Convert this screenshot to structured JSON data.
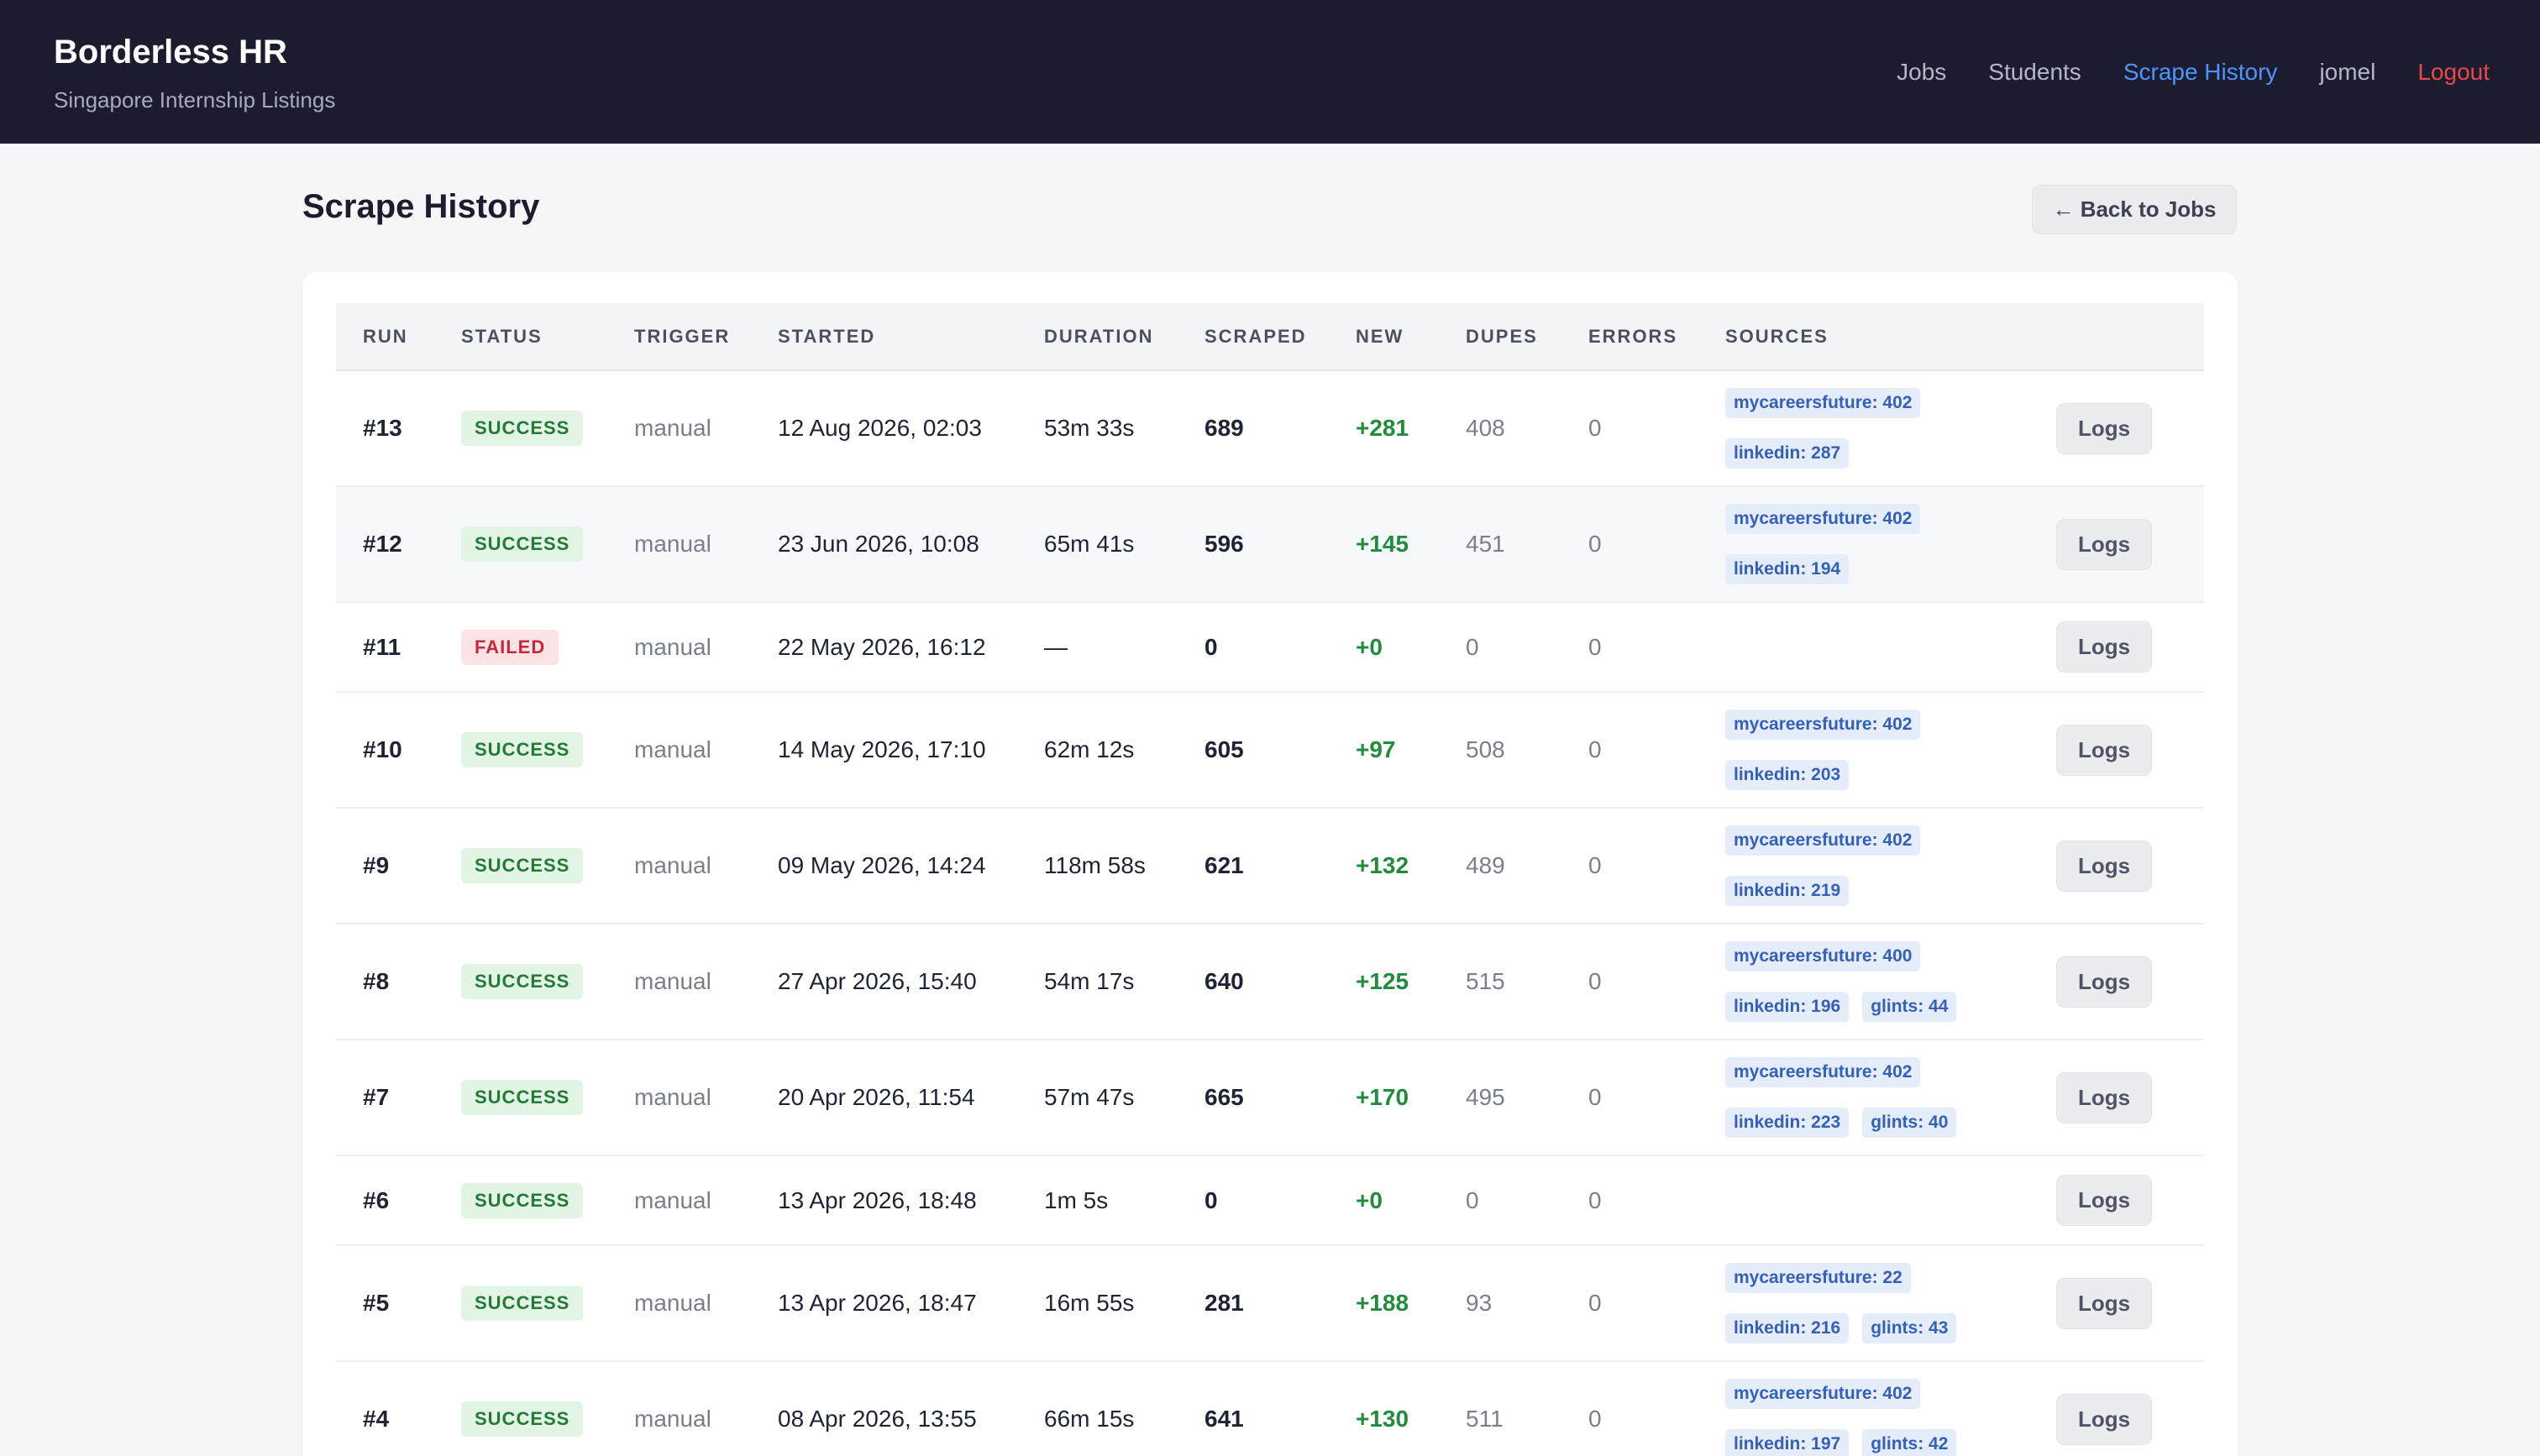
{
  "header": {
    "title": "Borderless HR",
    "subtitle": "Singapore Internship Listings",
    "nav": {
      "jobs": "Jobs",
      "students": "Students",
      "scrape_history": "Scrape History",
      "user": "jomel",
      "logout": "Logout"
    }
  },
  "page": {
    "title": "Scrape History",
    "back_label": "← Back to Jobs"
  },
  "table": {
    "columns": [
      "RUN",
      "STATUS",
      "TRIGGER",
      "STARTED",
      "DURATION",
      "SCRAPED",
      "NEW",
      "DUPES",
      "ERRORS",
      "SOURCES"
    ],
    "logs_label": "Logs",
    "rows": [
      {
        "run": "#13",
        "status": "SUCCESS",
        "trigger": "manual",
        "started": "12 Aug 2026, 02:03",
        "duration": "53m 33s",
        "scraped": "689",
        "new": "+281",
        "dupes": "408",
        "errors": "0",
        "sources": [
          "mycareersfuture: 402",
          "linkedin: 287"
        ]
      },
      {
        "run": "#12",
        "status": "SUCCESS",
        "trigger": "manual",
        "started": "23 Jun 2026, 10:08",
        "duration": "65m 41s",
        "scraped": "596",
        "new": "+145",
        "dupes": "451",
        "errors": "0",
        "sources": [
          "mycareersfuture: 402",
          "linkedin: 194"
        ]
      },
      {
        "run": "#11",
        "status": "FAILED",
        "trigger": "manual",
        "started": "22 May 2026, 16:12",
        "duration": "—",
        "scraped": "0",
        "new": "+0",
        "dupes": "0",
        "errors": "0",
        "sources": []
      },
      {
        "run": "#10",
        "status": "SUCCESS",
        "trigger": "manual",
        "started": "14 May 2026, 17:10",
        "duration": "62m 12s",
        "scraped": "605",
        "new": "+97",
        "dupes": "508",
        "errors": "0",
        "sources": [
          "mycareersfuture: 402",
          "linkedin: 203"
        ]
      },
      {
        "run": "#9",
        "status": "SUCCESS",
        "trigger": "manual",
        "started": "09 May 2026, 14:24",
        "duration": "118m 58s",
        "scraped": "621",
        "new": "+132",
        "dupes": "489",
        "errors": "0",
        "sources": [
          "mycareersfuture: 402",
          "linkedin: 219"
        ]
      },
      {
        "run": "#8",
        "status": "SUCCESS",
        "trigger": "manual",
        "started": "27 Apr 2026, 15:40",
        "duration": "54m 17s",
        "scraped": "640",
        "new": "+125",
        "dupes": "515",
        "errors": "0",
        "sources": [
          "mycareersfuture: 400",
          "linkedin: 196",
          "glints: 44"
        ]
      },
      {
        "run": "#7",
        "status": "SUCCESS",
        "trigger": "manual",
        "started": "20 Apr 2026, 11:54",
        "duration": "57m 47s",
        "scraped": "665",
        "new": "+170",
        "dupes": "495",
        "errors": "0",
        "sources": [
          "mycareersfuture: 402",
          "linkedin: 223",
          "glints: 40"
        ]
      },
      {
        "run": "#6",
        "status": "SUCCESS",
        "trigger": "manual",
        "started": "13 Apr 2026, 18:48",
        "duration": "1m 5s",
        "scraped": "0",
        "new": "+0",
        "dupes": "0",
        "errors": "0",
        "sources": []
      },
      {
        "run": "#5",
        "status": "SUCCESS",
        "trigger": "manual",
        "started": "13 Apr 2026, 18:47",
        "duration": "16m 55s",
        "scraped": "281",
        "new": "+188",
        "dupes": "93",
        "errors": "0",
        "sources": [
          "mycareersfuture: 22",
          "linkedin: 216",
          "glints: 43"
        ]
      },
      {
        "run": "#4",
        "status": "SUCCESS",
        "trigger": "manual",
        "started": "08 Apr 2026, 13:55",
        "duration": "66m 15s",
        "scraped": "641",
        "new": "+130",
        "dupes": "511",
        "errors": "0",
        "sources": [
          "mycareersfuture: 402",
          "linkedin: 197",
          "glints: 42"
        ]
      }
    ]
  },
  "colors": {
    "header_bg": "#1b1d2e",
    "nav_active": "#4f93ff",
    "logout": "#e5484d",
    "success_text": "#237a36",
    "success_bg": "#e2f4e4",
    "failed_text": "#c4283c",
    "failed_bg": "#fde3e6",
    "new_green": "#228b3c",
    "chip_bg": "#e5edfb",
    "chip_text": "#3460b8"
  }
}
